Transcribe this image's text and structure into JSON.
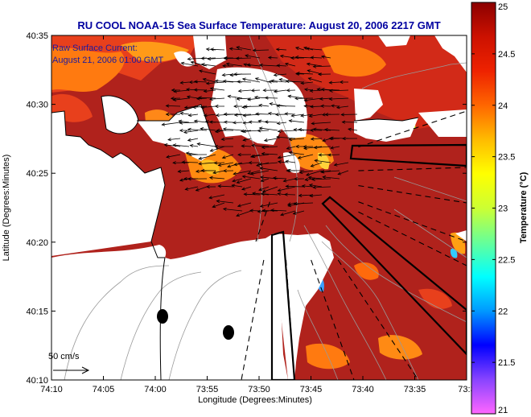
{
  "chart_data": {
    "type": "heatmap",
    "title": "RU COOL  NOAA-15  Sea Surface Temperature:  August 20, 2006 2217 GMT",
    "overlay_text": [
      "Raw Surface Current:",
      "August 21, 2006 01:00 GMT"
    ],
    "xlabel": "Longitude (Degrees:Minutes)",
    "ylabel": "Latitude (Degrees:Minutes)",
    "x_ticks": [
      "74:10",
      "74:05",
      "74:00",
      "73:55",
      "73:50",
      "73:45",
      "73:40",
      "73:35",
      "73:3"
    ],
    "y_ticks": [
      "40:35",
      "40:30",
      "40:25",
      "40:20",
      "40:15",
      "40:10"
    ],
    "colorbar": {
      "label": "Temperature (°C)",
      "range": [
        21,
        25
      ],
      "ticks": [
        "25",
        "24.5",
        "24",
        "23.5",
        "23",
        "22.5",
        "22",
        "21.5",
        "21"
      ],
      "colors": [
        "#ff66ff",
        "#8844ff",
        "#0000ff",
        "#0099ff",
        "#00ffff",
        "#66ff99",
        "#ccff33",
        "#ffff00",
        "#ffbb00",
        "#ff6600",
        "#ee2200",
        "#cc1100",
        "#8b0000"
      ]
    },
    "scale_label": "50 cm/s",
    "land_color": "#ffffff",
    "water_color": "#b0221c"
  }
}
